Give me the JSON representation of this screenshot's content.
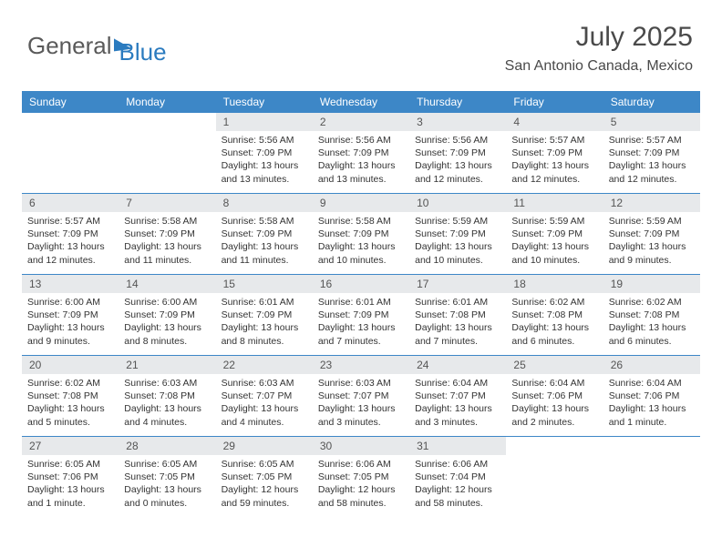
{
  "logo": {
    "text1": "General",
    "text2": "Blue"
  },
  "title": "July 2025",
  "location": "San Antonio Canada, Mexico",
  "colors": {
    "header_bg": "#3d87c7",
    "header_text": "#ffffff",
    "daynum_bg": "#e7e9eb",
    "row_border": "#3d87c7",
    "title_color": "#4a4a4a",
    "body_text": "#333333"
  },
  "day_names": [
    "Sunday",
    "Monday",
    "Tuesday",
    "Wednesday",
    "Thursday",
    "Friday",
    "Saturday"
  ],
  "weeks": [
    [
      {
        "n": "",
        "sr": "",
        "ss": "",
        "dl": ""
      },
      {
        "n": "",
        "sr": "",
        "ss": "",
        "dl": ""
      },
      {
        "n": "1",
        "sr": "5:56 AM",
        "ss": "7:09 PM",
        "dl": "13 hours and 13 minutes."
      },
      {
        "n": "2",
        "sr": "5:56 AM",
        "ss": "7:09 PM",
        "dl": "13 hours and 13 minutes."
      },
      {
        "n": "3",
        "sr": "5:56 AM",
        "ss": "7:09 PM",
        "dl": "13 hours and 12 minutes."
      },
      {
        "n": "4",
        "sr": "5:57 AM",
        "ss": "7:09 PM",
        "dl": "13 hours and 12 minutes."
      },
      {
        "n": "5",
        "sr": "5:57 AM",
        "ss": "7:09 PM",
        "dl": "13 hours and 12 minutes."
      }
    ],
    [
      {
        "n": "6",
        "sr": "5:57 AM",
        "ss": "7:09 PM",
        "dl": "13 hours and 12 minutes."
      },
      {
        "n": "7",
        "sr": "5:58 AM",
        "ss": "7:09 PM",
        "dl": "13 hours and 11 minutes."
      },
      {
        "n": "8",
        "sr": "5:58 AM",
        "ss": "7:09 PM",
        "dl": "13 hours and 11 minutes."
      },
      {
        "n": "9",
        "sr": "5:58 AM",
        "ss": "7:09 PM",
        "dl": "13 hours and 10 minutes."
      },
      {
        "n": "10",
        "sr": "5:59 AM",
        "ss": "7:09 PM",
        "dl": "13 hours and 10 minutes."
      },
      {
        "n": "11",
        "sr": "5:59 AM",
        "ss": "7:09 PM",
        "dl": "13 hours and 10 minutes."
      },
      {
        "n": "12",
        "sr": "5:59 AM",
        "ss": "7:09 PM",
        "dl": "13 hours and 9 minutes."
      }
    ],
    [
      {
        "n": "13",
        "sr": "6:00 AM",
        "ss": "7:09 PM",
        "dl": "13 hours and 9 minutes."
      },
      {
        "n": "14",
        "sr": "6:00 AM",
        "ss": "7:09 PM",
        "dl": "13 hours and 8 minutes."
      },
      {
        "n": "15",
        "sr": "6:01 AM",
        "ss": "7:09 PM",
        "dl": "13 hours and 8 minutes."
      },
      {
        "n": "16",
        "sr": "6:01 AM",
        "ss": "7:09 PM",
        "dl": "13 hours and 7 minutes."
      },
      {
        "n": "17",
        "sr": "6:01 AM",
        "ss": "7:08 PM",
        "dl": "13 hours and 7 minutes."
      },
      {
        "n": "18",
        "sr": "6:02 AM",
        "ss": "7:08 PM",
        "dl": "13 hours and 6 minutes."
      },
      {
        "n": "19",
        "sr": "6:02 AM",
        "ss": "7:08 PM",
        "dl": "13 hours and 6 minutes."
      }
    ],
    [
      {
        "n": "20",
        "sr": "6:02 AM",
        "ss": "7:08 PM",
        "dl": "13 hours and 5 minutes."
      },
      {
        "n": "21",
        "sr": "6:03 AM",
        "ss": "7:08 PM",
        "dl": "13 hours and 4 minutes."
      },
      {
        "n": "22",
        "sr": "6:03 AM",
        "ss": "7:07 PM",
        "dl": "13 hours and 4 minutes."
      },
      {
        "n": "23",
        "sr": "6:03 AM",
        "ss": "7:07 PM",
        "dl": "13 hours and 3 minutes."
      },
      {
        "n": "24",
        "sr": "6:04 AM",
        "ss": "7:07 PM",
        "dl": "13 hours and 3 minutes."
      },
      {
        "n": "25",
        "sr": "6:04 AM",
        "ss": "7:06 PM",
        "dl": "13 hours and 2 minutes."
      },
      {
        "n": "26",
        "sr": "6:04 AM",
        "ss": "7:06 PM",
        "dl": "13 hours and 1 minute."
      }
    ],
    [
      {
        "n": "27",
        "sr": "6:05 AM",
        "ss": "7:06 PM",
        "dl": "13 hours and 1 minute."
      },
      {
        "n": "28",
        "sr": "6:05 AM",
        "ss": "7:05 PM",
        "dl": "13 hours and 0 minutes."
      },
      {
        "n": "29",
        "sr": "6:05 AM",
        "ss": "7:05 PM",
        "dl": "12 hours and 59 minutes."
      },
      {
        "n": "30",
        "sr": "6:06 AM",
        "ss": "7:05 PM",
        "dl": "12 hours and 58 minutes."
      },
      {
        "n": "31",
        "sr": "6:06 AM",
        "ss": "7:04 PM",
        "dl": "12 hours and 58 minutes."
      },
      {
        "n": "",
        "sr": "",
        "ss": "",
        "dl": ""
      },
      {
        "n": "",
        "sr": "",
        "ss": "",
        "dl": ""
      }
    ]
  ],
  "labels": {
    "sunrise": "Sunrise:",
    "sunset": "Sunset:",
    "daylight": "Daylight:"
  }
}
